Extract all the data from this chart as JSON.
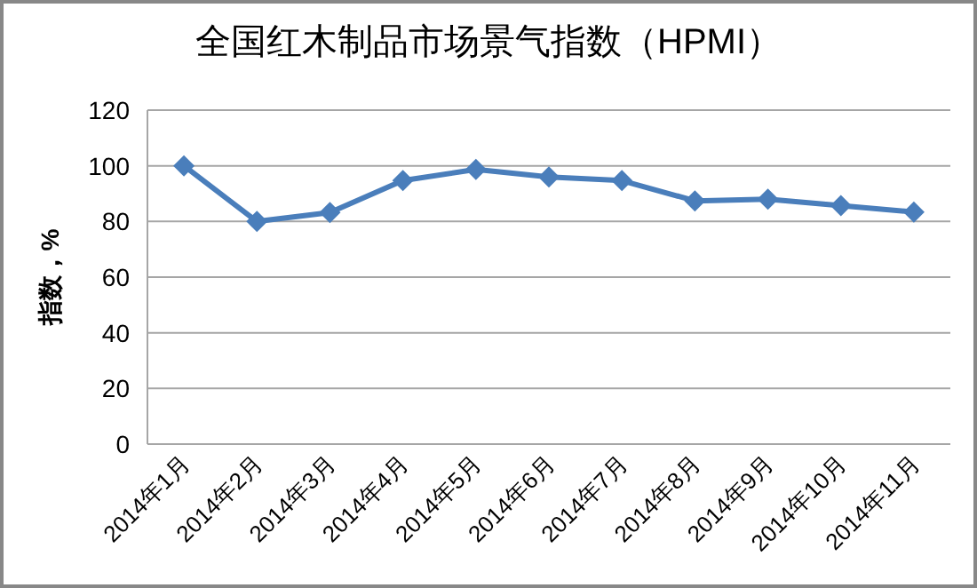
{
  "chart_data": {
    "type": "line",
    "title": "全国红木制品市场景气指数（HPMI）",
    "ylabel": "指数，%",
    "categories": [
      "2014年1月",
      "2014年2月",
      "2014年3月",
      "2014年4月",
      "2014年5月",
      "2014年6月",
      "2014年7月",
      "2014年8月",
      "2014年9月",
      "2014年10月",
      "2014年11月"
    ],
    "series": [
      {
        "color": "#4a7ebb",
        "values": [
          100,
          80,
          83.2,
          94.7,
          98.7,
          96,
          94.7,
          87.4,
          88,
          85.7,
          83.4
        ]
      }
    ],
    "ylim": [
      0,
      120
    ],
    "yticks": [
      0,
      20,
      40,
      60,
      80,
      100,
      120
    ],
    "grid": "y",
    "marker": "diamond",
    "line_style": "solid"
  }
}
